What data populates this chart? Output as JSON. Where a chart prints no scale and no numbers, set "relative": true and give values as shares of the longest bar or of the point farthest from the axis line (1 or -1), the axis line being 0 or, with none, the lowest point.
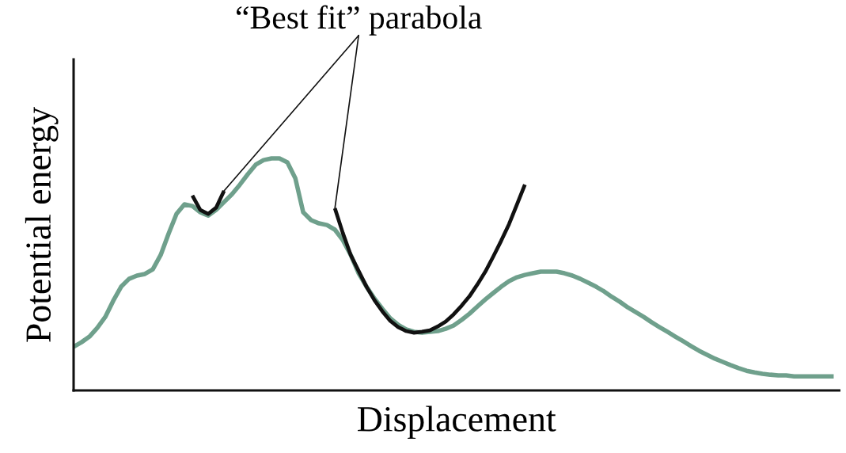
{
  "chart_data": {
    "type": "line",
    "relative": true,
    "xlabel": "Displacement",
    "ylabel": "Potential energy",
    "legend": false,
    "marker": "none",
    "line_style": "solid",
    "annotations": [
      "“Best fit” parabola"
    ],
    "categories": [
      null,
      null,
      null,
      null,
      null,
      null,
      null,
      null,
      null,
      null,
      null,
      null,
      null,
      null,
      null,
      null,
      null,
      null,
      null,
      null,
      null,
      null,
      null,
      null,
      null,
      null,
      null,
      null,
      null,
      null,
      null,
      null,
      null,
      null,
      null,
      null,
      null,
      null,
      null,
      null,
      null,
      null,
      null,
      null,
      null,
      null,
      null,
      null,
      null,
      null,
      null,
      null,
      null,
      null,
      null,
      null,
      null,
      null,
      null,
      null,
      null,
      null,
      null,
      null,
      null,
      null,
      null,
      null,
      null,
      null,
      null,
      null,
      null,
      null,
      null,
      null,
      null,
      null,
      null,
      null,
      null,
      null,
      null,
      null,
      null,
      null,
      null,
      null,
      null,
      null,
      null,
      null,
      null,
      null,
      null,
      null,
      null
    ],
    "series": [
      {
        "color": "#6fa08c",
        "values": [
          0.188,
          0.208,
          0.232,
          0.27,
          0.317,
          0.386,
          0.447,
          0.481,
          0.495,
          0.502,
          0.522,
          0.584,
          0.676,
          0.761,
          0.802,
          0.795,
          0.768,
          0.754,
          0.778,
          0.812,
          0.846,
          0.887,
          0.932,
          0.973,
          0.993,
          1,
          1,
          0.983,
          0.915,
          0.768,
          0.734,
          0.72,
          0.713,
          0.693,
          0.648,
          0.584,
          0.505,
          0.447,
          0.396,
          0.352,
          0.311,
          0.283,
          0.263,
          0.253,
          0.249,
          0.253,
          0.256,
          0.266,
          0.28,
          0.304,
          0.331,
          0.362,
          0.392,
          0.42,
          0.447,
          0.471,
          0.488,
          0.498,
          0.505,
          0.512,
          0.512,
          0.512,
          0.505,
          0.495,
          0.481,
          0.464,
          0.447,
          0.427,
          0.403,
          0.382,
          0.358,
          0.338,
          0.317,
          0.294,
          0.273,
          0.253,
          0.232,
          0.212,
          0.191,
          0.171,
          0.154,
          0.137,
          0.123,
          0.109,
          0.096,
          0.085,
          0.078,
          0.072,
          0.068,
          0.065,
          0.065,
          0.061,
          0.061,
          0.061,
          0.061,
          0.061,
          0.061
        ]
      },
      {
        "color": "#111111",
        "values": [
          null,
          null,
          null,
          null,
          null,
          null,
          null,
          null,
          null,
          null,
          null,
          null,
          null,
          null,
          null,
          0.84,
          0.778,
          0.761,
          0.788,
          0.86,
          null,
          null,
          null,
          null,
          null,
          null,
          null,
          null,
          null,
          null,
          null,
          null,
          null,
          null,
          null,
          null,
          null,
          null,
          null,
          null,
          null,
          null,
          null,
          null,
          null,
          null,
          null,
          null,
          null,
          null,
          null,
          null,
          null,
          null,
          null,
          null,
          null,
          null,
          null,
          null,
          null,
          null,
          null,
          null,
          null,
          null,
          null,
          null,
          null,
          null,
          null,
          null,
          null,
          null,
          null,
          null,
          null,
          null,
          null,
          null,
          null,
          null,
          null,
          null,
          null,
          null,
          null,
          null,
          null,
          null,
          null,
          null,
          null,
          null,
          null,
          null,
          null
        ]
      },
      {
        "color": "#111111",
        "values": [
          null,
          null,
          null,
          null,
          null,
          null,
          null,
          null,
          null,
          null,
          null,
          null,
          null,
          null,
          null,
          null,
          null,
          null,
          null,
          null,
          null,
          null,
          null,
          null,
          null,
          null,
          null,
          null,
          null,
          null,
          null,
          null,
          null,
          0.785,
          0.679,
          0.584,
          0.515,
          0.447,
          0.389,
          0.341,
          0.3,
          0.273,
          0.256,
          0.249,
          0.253,
          0.259,
          0.276,
          0.297,
          0.328,
          0.365,
          0.406,
          0.457,
          0.512,
          0.577,
          0.645,
          0.717,
          0.802,
          0.887,
          null,
          null,
          null,
          null,
          null,
          null,
          null,
          null,
          null,
          null,
          null,
          null,
          null,
          null,
          null,
          null,
          null,
          null,
          null,
          null,
          null,
          null,
          null,
          null,
          null,
          null,
          null,
          null,
          null,
          null,
          null,
          null,
          null,
          null,
          null,
          null,
          null,
          null,
          null
        ]
      }
    ]
  }
}
